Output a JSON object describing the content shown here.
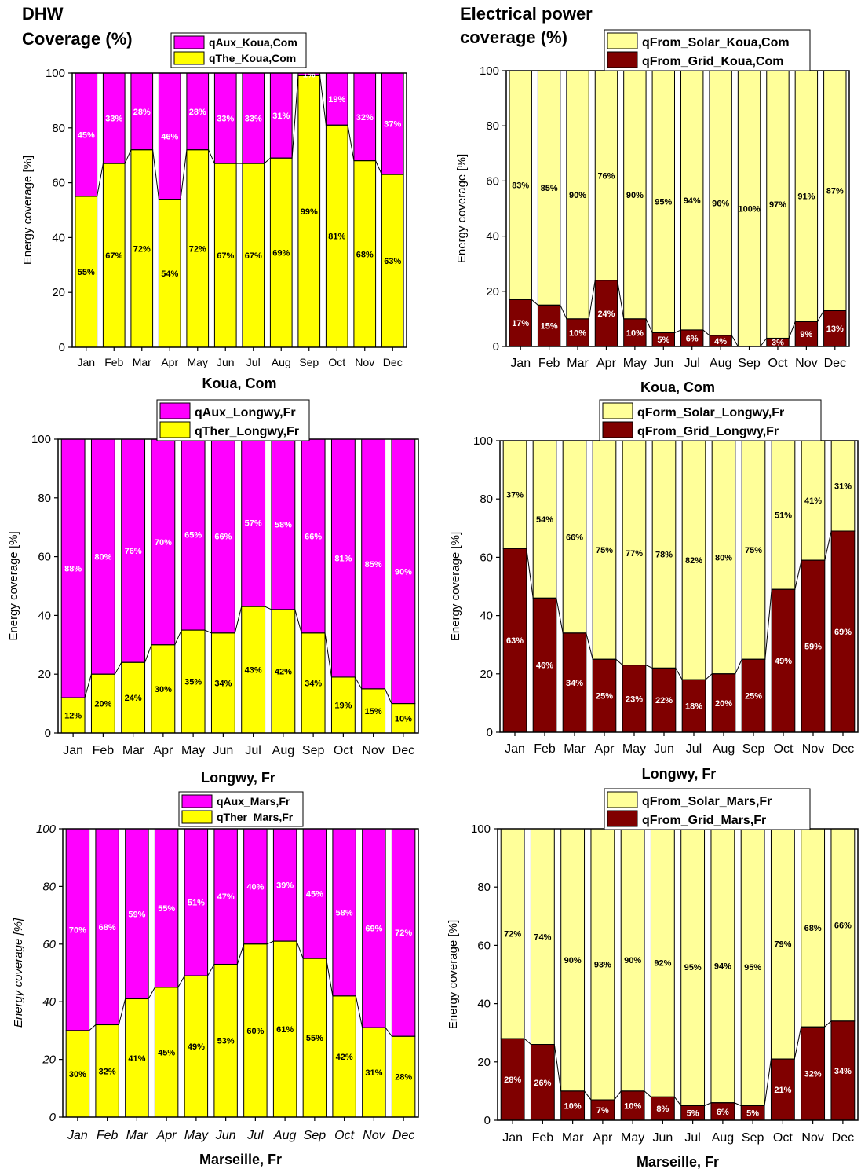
{
  "headings": {
    "left": [
      "DHW",
      "Coverage (%)"
    ],
    "right": [
      "Electrical power",
      "coverage (%)"
    ]
  },
  "colors": {
    "magenta": "#ff00ff",
    "yellow": "#ffff00",
    "light_yellow": "#ffff99",
    "dark_red": "#800000"
  },
  "chart_data": [
    {
      "id": "dhw-koua",
      "type": "bar",
      "stacked": true,
      "categories": [
        "Jan",
        "Feb",
        "Mar",
        "Apr",
        "May",
        "Jun",
        "Jul",
        "Aug",
        "Sep",
        "Oct",
        "Nov",
        "Dec"
      ],
      "series": [
        {
          "name": "qThe_Koua,Com",
          "values": [
            55,
            67,
            72,
            54,
            72,
            67,
            67,
            69,
            99,
            81,
            68,
            63
          ],
          "labels": [
            "55%",
            "67%",
            "72%",
            "54%",
            "72%",
            "67%",
            "67%",
            "69%",
            "99%",
            "81%",
            "68%",
            "63%"
          ],
          "color": "#ffff00"
        },
        {
          "name": "qAux_Koua,Com",
          "values": [
            45,
            33,
            28,
            46,
            28,
            33,
            33,
            31,
            1,
            19,
            32,
            37
          ],
          "labels": [
            "45%",
            "33%",
            "28%",
            "46%",
            "28%",
            "33%",
            "33%",
            "31%",
            "1%",
            "19%",
            "32%",
            "37%"
          ],
          "color": "#ff00ff"
        }
      ],
      "legend": [
        "qAux_Koua,Com",
        "qThe_Koua,Com"
      ],
      "title": "Koua, Com",
      "ylabel": "Energy coverage [%]",
      "ylim": [
        0,
        100
      ],
      "yticks": [
        "0",
        "20",
        "40",
        "60",
        "80",
        "100"
      ]
    },
    {
      "id": "elec-koua",
      "type": "bar",
      "stacked": true,
      "categories": [
        "Jan",
        "Feb",
        "Mar",
        "Apr",
        "May",
        "Jun",
        "Jul",
        "Aug",
        "Sep",
        "Oct",
        "Nov",
        "Dec"
      ],
      "series": [
        {
          "name": "qFrom_Grid_Koua,Com",
          "values": [
            17,
            15,
            10,
            24,
            10,
            5,
            6,
            4,
            0,
            3,
            9,
            13
          ],
          "labels": [
            "17%",
            "15%",
            "10%",
            "24%",
            "10%",
            "5%",
            "6%",
            "4%",
            "",
            "3%",
            "9%",
            "13%"
          ],
          "color": "#800000"
        },
        {
          "name": "qFrom_Solar_Koua,Com",
          "values": [
            83,
            85,
            90,
            76,
            90,
            95,
            94,
            96,
            100,
            97,
            91,
            87
          ],
          "labels": [
            "83%",
            "85%",
            "90%",
            "76%",
            "90%",
            "95%",
            "94%",
            "96%",
            "100%",
            "97%",
            "91%",
            "87%"
          ],
          "color": "#ffff99"
        }
      ],
      "legend": [
        "qFrom_Solar_Koua,Com",
        "qFrom_Grid_Koua,Com"
      ],
      "title": "Koua, Com",
      "ylabel": "Energy coverage [%]",
      "ylim": [
        0,
        100
      ],
      "yticks": [
        "0",
        "20",
        "40",
        "60",
        "80",
        "100"
      ]
    },
    {
      "id": "dhw-longwy",
      "type": "bar",
      "stacked": true,
      "categories": [
        "Jan",
        "Feb",
        "Mar",
        "Apr",
        "May",
        "Jun",
        "Jul",
        "Aug",
        "Sep",
        "Oct",
        "Nov",
        "Dec"
      ],
      "series": [
        {
          "name": "qTher_Longwy,Fr",
          "values": [
            12,
            20,
            24,
            30,
            35,
            34,
            43,
            42,
            34,
            19,
            15,
            10
          ],
          "labels": [
            "12%",
            "20%",
            "24%",
            "30%",
            "35%",
            "34%",
            "43%",
            "42%",
            "34%",
            "19%",
            "15%",
            "10%"
          ],
          "color": "#ffff00"
        },
        {
          "name": "qAux_Longwy,Fr",
          "values": [
            88,
            80,
            76,
            70,
            65,
            66,
            57,
            58,
            66,
            81,
            85,
            90
          ],
          "labels": [
            "88%",
            "80%",
            "76%",
            "70%",
            "65%",
            "66%",
            "57%",
            "58%",
            "66%",
            "81%",
            "85%",
            "90%"
          ],
          "color": "#ff00ff"
        }
      ],
      "legend": [
        "qAux_Longwy,Fr",
        "qTher_Longwy,Fr"
      ],
      "title": "Longwy, Fr",
      "ylabel": "Energy coverage [%]",
      "ylim": [
        0,
        100
      ],
      "yticks": [
        "0",
        "20",
        "40",
        "60",
        "80",
        "100"
      ]
    },
    {
      "id": "elec-longwy",
      "type": "bar",
      "stacked": true,
      "categories": [
        "Jan",
        "Feb",
        "Mar",
        "Apr",
        "May",
        "Jun",
        "Jul",
        "Aug",
        "Sep",
        "Oct",
        "Nov",
        "Dec"
      ],
      "series": [
        {
          "name": "qFrom_Grid_Longwy,Fr",
          "values": [
            63,
            46,
            34,
            25,
            23,
            22,
            18,
            20,
            25,
            49,
            59,
            69
          ],
          "labels": [
            "63%",
            "46%",
            "34%",
            "25%",
            "23%",
            "22%",
            "18%",
            "20%",
            "25%",
            "49%",
            "59%",
            "69%"
          ],
          "color": "#800000"
        },
        {
          "name": "qForm_Solar_Longwy,Fr",
          "values": [
            37,
            54,
            66,
            75,
            77,
            78,
            82,
            80,
            75,
            51,
            41,
            31
          ],
          "labels": [
            "37%",
            "54%",
            "66%",
            "75%",
            "77%",
            "78%",
            "82%",
            "80%",
            "75%",
            "51%",
            "41%",
            "31%"
          ],
          "color": "#ffff99"
        }
      ],
      "legend": [
        "qForm_Solar_Longwy,Fr",
        "qFrom_Grid_Longwy,Fr"
      ],
      "title": "Longwy, Fr",
      "ylabel": "Energy coverage [%]",
      "ylim": [
        0,
        100
      ],
      "yticks": [
        "0",
        "20",
        "40",
        "60",
        "80",
        "100"
      ]
    },
    {
      "id": "dhw-marseille",
      "type": "bar",
      "stacked": true,
      "categories": [
        "Jan",
        "Feb",
        "Mar",
        "Apr",
        "May",
        "Jun",
        "Jul",
        "Aug",
        "Sep",
        "Oct",
        "Nov",
        "Dec"
      ],
      "series": [
        {
          "name": "qTher_Mars,Fr",
          "values": [
            30,
            32,
            41,
            45,
            49,
            53,
            60,
            61,
            55,
            42,
            31,
            28
          ],
          "labels": [
            "30%",
            "32%",
            "41%",
            "45%",
            "49%",
            "53%",
            "60%",
            "61%",
            "55%",
            "42%",
            "31%",
            "28%"
          ],
          "color": "#ffff00"
        },
        {
          "name": "qAux_Mars,Fr",
          "values": [
            70,
            68,
            59,
            55,
            51,
            47,
            40,
            39,
            45,
            58,
            69,
            72
          ],
          "labels": [
            "70%",
            "68%",
            "59%",
            "55%",
            "51%",
            "47%",
            "40%",
            "39%",
            "45%",
            "58%",
            "69%",
            "72%"
          ],
          "color": "#ff00ff"
        }
      ],
      "legend": [
        "qAux_Mars,Fr",
        "qTher_Mars,Fr"
      ],
      "title": "Marseille, Fr",
      "ylabel": "Energy coverage [%]",
      "italic_axes": true,
      "ylim": [
        0,
        100
      ],
      "yticks": [
        "0",
        "20",
        "40",
        "60",
        "80",
        "100"
      ]
    },
    {
      "id": "elec-marseille",
      "type": "bar",
      "stacked": true,
      "categories": [
        "Jan",
        "Feb",
        "Mar",
        "Apr",
        "May",
        "Jun",
        "Jul",
        "Aug",
        "Sep",
        "Oct",
        "Nov",
        "Dec"
      ],
      "series": [
        {
          "name": "qFrom_Grid_Mars,Fr",
          "values": [
            28,
            26,
            10,
            7,
            10,
            8,
            5,
            6,
            5,
            21,
            32,
            34
          ],
          "labels": [
            "28%",
            "26%",
            "10%",
            "7%",
            "10%",
            "8%",
            "5%",
            "6%",
            "5%",
            "21%",
            "32%",
            "34%"
          ],
          "color": "#800000"
        },
        {
          "name": "qFrom_Solar_Mars,Fr",
          "values": [
            72,
            74,
            90,
            93,
            90,
            92,
            95,
            94,
            95,
            79,
            68,
            66
          ],
          "labels": [
            "72%",
            "74%",
            "90%",
            "93%",
            "90%",
            "92%",
            "95%",
            "94%",
            "95%",
            "79%",
            "68%",
            "66%"
          ],
          "color": "#ffff99"
        }
      ],
      "legend": [
        "qFrom_Solar_Mars,Fr",
        "qFrom_Grid_Mars,Fr"
      ],
      "title": "Marseille, Fr",
      "ylabel": "Energy coverage [%]",
      "ylim": [
        0,
        100
      ],
      "yticks": [
        "0",
        "20",
        "40",
        "60",
        "80",
        "100"
      ]
    }
  ]
}
